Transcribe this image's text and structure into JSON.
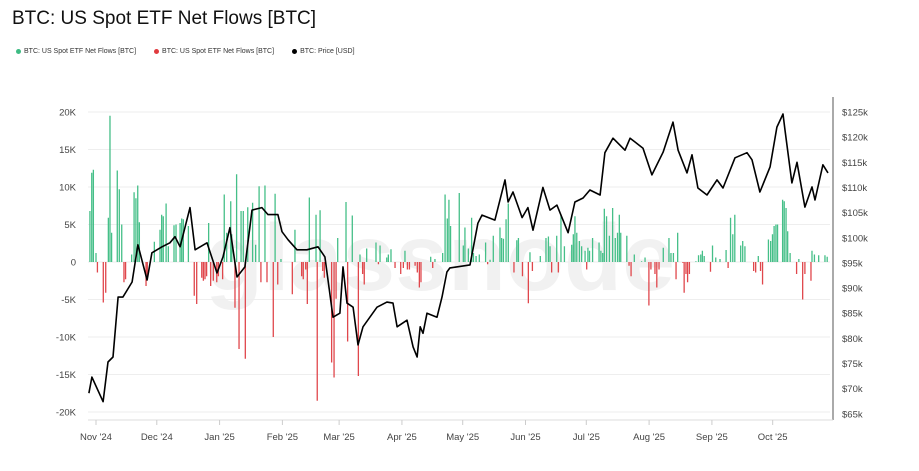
{
  "chart_data": {
    "type": "bar+line",
    "title": "BTC: US Spot ETF Net Flows [BTC]",
    "watermark": "glassnode",
    "x_unit": "days since 2024-11-01",
    "x_origin": "2024-11-01",
    "xlim": [
      -4,
      362
    ],
    "x_ticks": [
      {
        "day": 0,
        "label": "Nov '24"
      },
      {
        "day": 30,
        "label": "Dec '24"
      },
      {
        "day": 61,
        "label": "Jan '25"
      },
      {
        "day": 92,
        "label": "Feb '25"
      },
      {
        "day": 120,
        "label": "Mar '25"
      },
      {
        "day": 151,
        "label": "Apr '25"
      },
      {
        "day": 181,
        "label": "May '25"
      },
      {
        "day": 212,
        "label": "Jun '25"
      },
      {
        "day": 242,
        "label": "Jul '25"
      },
      {
        "day": 273,
        "label": "Aug '25"
      },
      {
        "day": 304,
        "label": "Sep '25"
      },
      {
        "day": 334,
        "label": "Oct '25"
      }
    ],
    "y_left": {
      "unit": "K BTC",
      "lim": [
        -20,
        20
      ],
      "ticks": [
        {
          "v": 20,
          "label": "20K"
        },
        {
          "v": 15,
          "label": "15K"
        },
        {
          "v": 10,
          "label": "10K"
        },
        {
          "v": 5,
          "label": "5K"
        },
        {
          "v": 0,
          "label": "0"
        },
        {
          "v": -5,
          "label": "-5K"
        },
        {
          "v": -10,
          "label": "-10K"
        },
        {
          "v": -15,
          "label": "-15K"
        },
        {
          "v": -20,
          "label": "-20K"
        }
      ]
    },
    "y_right": {
      "unit": "k USD",
      "lim": [
        65,
        125
      ],
      "ticks": [
        {
          "v": 125,
          "label": "$125k"
        },
        {
          "v": 120,
          "label": "$120k"
        },
        {
          "v": 115,
          "label": "$115k"
        },
        {
          "v": 110,
          "label": "$110k"
        },
        {
          "v": 105,
          "label": "$105k"
        },
        {
          "v": 100,
          "label": "$100k"
        },
        {
          "v": 95,
          "label": "$95k"
        },
        {
          "v": 90,
          "label": "$90k"
        },
        {
          "v": 85,
          "label": "$85k"
        },
        {
          "v": 80,
          "label": "$80k"
        },
        {
          "v": 75,
          "label": "$75k"
        },
        {
          "v": 70,
          "label": "$70k"
        },
        {
          "v": 65,
          "label": "$65k"
        }
      ]
    },
    "legend": [
      {
        "label": "BTC: US Spot ETF Net Flows [BTC]",
        "color": "#3dbb83"
      },
      {
        "label": "BTC: US Spot ETF Net Flows [BTC]",
        "color": "#e03a3e"
      },
      {
        "label": "BTC: Price [USD]",
        "color": "#000000"
      }
    ],
    "colors": {
      "inflow": "#45bf88",
      "outflow": "#e0474c",
      "price": "#000000",
      "grid": "#eeeeee"
    },
    "flows": [
      [
        -3.0,
        6.8
      ],
      [
        -2.1,
        11.9
      ],
      [
        -1.3,
        12.3
      ],
      [
        0,
        1.2
      ],
      [
        0.7,
        -1.4
      ],
      [
        3.6,
        -5.4
      ],
      [
        4.8,
        -4.1
      ],
      [
        6.1,
        5.9
      ],
      [
        6.9,
        19.5
      ],
      [
        7.7,
        3.9
      ],
      [
        10.5,
        12.2
      ],
      [
        11.5,
        9.7
      ],
      [
        12.7,
        5
      ],
      [
        13.8,
        -2.7
      ],
      [
        14.6,
        -2.3
      ],
      [
        17.6,
        1
      ],
      [
        18.8,
        9.3
      ],
      [
        19.7,
        8.5
      ],
      [
        20.6,
        10.2
      ],
      [
        21.4,
        5.3
      ],
      [
        24.7,
        -3.2
      ],
      [
        25.3,
        -2.3
      ],
      [
        28.8,
        2.7
      ],
      [
        31.6,
        4.3
      ],
      [
        32.4,
        6.3
      ],
      [
        33.2,
        6.1
      ],
      [
        34.6,
        7.8
      ],
      [
        35.7,
        2.1
      ],
      [
        38.5,
        4.9
      ],
      [
        39.5,
        5
      ],
      [
        41.5,
        5.2
      ],
      [
        42.3,
        5.8
      ],
      [
        43.1,
        5.7
      ],
      [
        45.6,
        4.8
      ],
      [
        48.5,
        -4.5
      ],
      [
        49.7,
        -5.6
      ],
      [
        52.2,
        -2.1
      ],
      [
        53.0,
        -2.5
      ],
      [
        53.8,
        -2.3
      ],
      [
        54.6,
        -1.9
      ],
      [
        55.6,
        5.2
      ],
      [
        56.6,
        -3.2
      ],
      [
        57.9,
        -2.5
      ],
      [
        59.6,
        -2.7
      ],
      [
        60.4,
        -1.9
      ],
      [
        62.5,
        -2.3
      ],
      [
        63.3,
        9
      ],
      [
        64.5,
        3.9
      ],
      [
        66.5,
        8.1
      ],
      [
        67.0,
        3.7
      ],
      [
        68.6,
        -6.1
      ],
      [
        69.4,
        11.7
      ],
      [
        70.6,
        -11.6
      ],
      [
        71.6,
        6.8
      ],
      [
        72.7,
        6.8
      ],
      [
        73.7,
        -12.9
      ],
      [
        74.9,
        7.3
      ],
      [
        77.3,
        7.9
      ],
      [
        78.8,
        2.3
      ],
      [
        80.5,
        10.1
      ],
      [
        81.4,
        -2.7
      ],
      [
        83.4,
        10.2
      ],
      [
        84.4,
        -2.7
      ],
      [
        87.5,
        -10
      ],
      [
        88.4,
        9.1
      ],
      [
        89.7,
        -3
      ],
      [
        91.3,
        0.4
      ],
      [
        96.9,
        -4.3
      ],
      [
        98.2,
        4.3
      ],
      [
        101.5,
        -1.9
      ],
      [
        102.3,
        -2.3
      ],
      [
        103.5,
        -1
      ],
      [
        104.3,
        -5.6
      ],
      [
        105.3,
        8.6
      ],
      [
        108.6,
        6.3
      ],
      [
        109.2,
        -18.5
      ],
      [
        110.6,
        6.9
      ],
      [
        111.9,
        -1.2
      ],
      [
        112.7,
        -2.1
      ],
      [
        116.3,
        -13.4
      ],
      [
        117.5,
        -15.4
      ],
      [
        118.5,
        -4.9
      ],
      [
        119.3,
        3.2
      ],
      [
        123.4,
        8
      ],
      [
        124.2,
        -10.6
      ],
      [
        126.5,
        6.2
      ],
      [
        129.5,
        -15.2
      ],
      [
        130.3,
        1
      ],
      [
        131.6,
        -1.6
      ],
      [
        132.4,
        -3
      ],
      [
        133.6,
        1.8
      ],
      [
        138.2,
        2.6
      ],
      [
        139.4,
        -0.3
      ],
      [
        140.2,
        2.2
      ],
      [
        143.5,
        0.6
      ],
      [
        144.3,
        1
      ],
      [
        145.6,
        1.7
      ],
      [
        147.6,
        -0.8
      ],
      [
        150.4,
        -1.6
      ],
      [
        151.7,
        -0.8
      ],
      [
        152.5,
        1.5
      ],
      [
        153.7,
        -1
      ],
      [
        154.7,
        -1
      ],
      [
        157.5,
        -0.5
      ],
      [
        158.6,
        -1.4
      ],
      [
        159.6,
        -3.4
      ],
      [
        160.4,
        -2.7
      ],
      [
        165.2,
        0.7
      ],
      [
        166.2,
        -0.8
      ],
      [
        167.3,
        0.4
      ],
      [
        171.1,
        1.2
      ],
      [
        172.3,
        9
      ],
      [
        173.4,
        5.8
      ],
      [
        174.2,
        8.3
      ],
      [
        175.0,
        4.8
      ],
      [
        179.3,
        9.2
      ],
      [
        181.3,
        2.2
      ],
      [
        182.1,
        4.6
      ],
      [
        183.8,
        1.8
      ],
      [
        185.4,
        5.9
      ],
      [
        186.3,
        1.2
      ],
      [
        187.6,
        0.8
      ],
      [
        189.2,
        1
      ],
      [
        192.3,
        2.6
      ],
      [
        193.3,
        -0.3
      ],
      [
        194.5,
        0.3
      ],
      [
        196.1,
        3.5
      ],
      [
        199.4,
        4.6
      ],
      [
        200.2,
        3.2
      ],
      [
        201.1,
        3.1
      ],
      [
        202.4,
        5.7
      ],
      [
        203.5,
        7.8
      ],
      [
        206.3,
        -1.4
      ],
      [
        207.7,
        2.9
      ],
      [
        208.5,
        3.2
      ],
      [
        210.5,
        -1.9
      ],
      [
        213.4,
        -5.5
      ],
      [
        214.2,
        1.3
      ],
      [
        215.4,
        -1.2
      ],
      [
        219.3,
        0.8
      ],
      [
        222.1,
        3.2
      ],
      [
        223.3,
        3.4
      ],
      [
        224.1,
        2.1
      ],
      [
        224.9,
        -1.4
      ],
      [
        227.4,
        3.5
      ],
      [
        228.2,
        -1.4
      ],
      [
        229.5,
        6.3
      ],
      [
        231.2,
        2.1
      ],
      [
        234.8,
        2.3
      ],
      [
        235.6,
        3.7
      ],
      [
        236.4,
        6.1
      ],
      [
        237.3,
        3.9
      ],
      [
        238.6,
        2.8
      ],
      [
        239.7,
        2.1
      ],
      [
        241.4,
        1.5
      ],
      [
        242.2,
        -1
      ],
      [
        242.8,
        1.9
      ],
      [
        243.6,
        1.5
      ],
      [
        245.1,
        3.2
      ],
      [
        248.3,
        2.6
      ],
      [
        249.2,
        1.5
      ],
      [
        250.1,
        1.2
      ],
      [
        250.9,
        7.1
      ],
      [
        252.0,
        6.1
      ],
      [
        253.4,
        3.5
      ],
      [
        255.0,
        7.2
      ],
      [
        256.3,
        3.2
      ],
      [
        257.4,
        3.9
      ],
      [
        258.3,
        6.3
      ],
      [
        259.0,
        3.9
      ],
      [
        262.0,
        3.5
      ],
      [
        263.1,
        -0.5
      ],
      [
        264.1,
        -1.9
      ],
      [
        265.7,
        1
      ],
      [
        269.3,
        0.1
      ],
      [
        271.0,
        0.6
      ],
      [
        272.9,
        -5.8
      ],
      [
        273.9,
        -1
      ],
      [
        275.9,
        -1.6
      ],
      [
        276.8,
        -3.4
      ],
      [
        277.9,
        -1
      ],
      [
        280.0,
        1.9
      ],
      [
        282.8,
        3.2
      ],
      [
        283.8,
        1.2
      ],
      [
        285.0,
        1.2
      ],
      [
        286.3,
        -2.3
      ],
      [
        287.1,
        3.9
      ],
      [
        289.6,
        -0.1
      ],
      [
        290.3,
        -4.1
      ],
      [
        291.2,
        -1.6
      ],
      [
        292.0,
        -2.7
      ],
      [
        292.9,
        -1.6
      ],
      [
        296.1,
        0.1
      ],
      [
        297.4,
        0.9
      ],
      [
        298.5,
        1
      ],
      [
        299.3,
        1.5
      ],
      [
        300.2,
        0.8
      ],
      [
        303.3,
        -1.3
      ],
      [
        304.3,
        2.2
      ],
      [
        305.9,
        0.6
      ],
      [
        308.0,
        0.4
      ],
      [
        311.0,
        1.6
      ],
      [
        312.0,
        -0.8
      ],
      [
        313.2,
        5.9
      ],
      [
        314.3,
        3.7
      ],
      [
        315.3,
        6.3
      ],
      [
        318.2,
        2.2
      ],
      [
        319.2,
        2.8
      ],
      [
        320.3,
        2.1
      ],
      [
        324.6,
        -1.2
      ],
      [
        325.6,
        -1.4
      ],
      [
        326.9,
        0.8
      ],
      [
        328.0,
        -1.2
      ],
      [
        329.0,
        -3
      ],
      [
        331.9,
        3
      ],
      [
        333.0,
        2.8
      ],
      [
        333.9,
        3.7
      ],
      [
        334.7,
        4.8
      ],
      [
        335.6,
        5
      ],
      [
        336.4,
        5
      ],
      [
        338.9,
        8.3
      ],
      [
        339.7,
        8.1
      ],
      [
        340.6,
        7.2
      ],
      [
        341.4,
        4.1
      ],
      [
        342.6,
        1.2
      ],
      [
        345.8,
        -1.6
      ],
      [
        346.9,
        0.4
      ],
      [
        348.8,
        -5
      ],
      [
        349.9,
        -1.6
      ],
      [
        352.9,
        -2.5
      ],
      [
        353.4,
        1.5
      ],
      [
        354.6,
        1
      ],
      [
        356.7,
        0.9
      ],
      [
        359.8,
        0.9
      ],
      [
        360.9,
        0.7
      ]
    ],
    "price": [
      [
        -3.5,
        69.1
      ],
      [
        -2,
        72.3
      ],
      [
        3.5,
        67.4
      ],
      [
        5.9,
        75.3
      ],
      [
        8.4,
        76.3
      ],
      [
        10.9,
        88.2
      ],
      [
        13.3,
        88.2
      ],
      [
        17.8,
        91.2
      ],
      [
        20.7,
        98.6
      ],
      [
        25.2,
        91.6
      ],
      [
        27.6,
        97
      ],
      [
        32.6,
        98.2
      ],
      [
        36.5,
        99
      ],
      [
        39,
        100.2
      ],
      [
        41.5,
        98.2
      ],
      [
        46.4,
        106
      ],
      [
        48.9,
        97.6
      ],
      [
        54.8,
        99
      ],
      [
        59.7,
        93
      ],
      [
        62.7,
        96.2
      ],
      [
        66.1,
        102
      ],
      [
        69.6,
        92.2
      ],
      [
        73.5,
        94.2
      ],
      [
        77,
        105.5
      ],
      [
        81.9,
        106
      ],
      [
        84.9,
        104.6
      ],
      [
        89.8,
        104.6
      ],
      [
        91.8,
        101.2
      ],
      [
        94.8,
        99.6
      ],
      [
        99.2,
        97.6
      ],
      [
        104.1,
        97.6
      ],
      [
        109.6,
        98.2
      ],
      [
        113,
        96.2
      ],
      [
        117,
        84.2
      ],
      [
        120.4,
        85
      ],
      [
        121.9,
        94.2
      ],
      [
        123.9,
        87
      ],
      [
        126.9,
        86.2
      ],
      [
        129.3,
        78.7
      ],
      [
        131.8,
        82.3
      ],
      [
        138.7,
        86.2
      ],
      [
        143.6,
        87.2
      ],
      [
        146.6,
        87
      ],
      [
        148.6,
        82.3
      ],
      [
        153.5,
        83.6
      ],
      [
        156.5,
        78.3
      ],
      [
        158.5,
        76.3
      ],
      [
        160,
        82.3
      ],
      [
        161.4,
        81
      ],
      [
        163.4,
        85
      ],
      [
        168.3,
        84.2
      ],
      [
        170.8,
        88.2
      ],
      [
        173.2,
        93.2
      ],
      [
        174.7,
        94
      ],
      [
        184.6,
        94.6
      ],
      [
        188.5,
        102.9
      ],
      [
        190.5,
        104.5
      ],
      [
        196.9,
        103.5
      ],
      [
        201.9,
        111.5
      ],
      [
        203.4,
        107.1
      ],
      [
        205.8,
        109.1
      ],
      [
        210.3,
        104
      ],
      [
        213.2,
        106
      ],
      [
        215.7,
        101.5
      ],
      [
        220.6,
        110
      ],
      [
        224.1,
        105.5
      ],
      [
        227.5,
        106.5
      ],
      [
        233,
        101
      ],
      [
        236.4,
        107.1
      ],
      [
        240.4,
        107.9
      ],
      [
        243.8,
        109.5
      ],
      [
        248.8,
        108.5
      ],
      [
        251.2,
        116.9
      ],
      [
        255.2,
        119.8
      ],
      [
        261.1,
        117.4
      ],
      [
        263.6,
        119.8
      ],
      [
        270,
        117.8
      ],
      [
        274.4,
        112.5
      ],
      [
        279.9,
        117
      ],
      [
        284.8,
        123
      ],
      [
        287.3,
        117.4
      ],
      [
        291.7,
        112.9
      ],
      [
        294.2,
        116.5
      ],
      [
        297.1,
        109.9
      ],
      [
        301.6,
        108.5
      ],
      [
        306.5,
        111.5
      ],
      [
        309.5,
        109.9
      ],
      [
        315.4,
        115.9
      ],
      [
        321.3,
        116.9
      ],
      [
        323.8,
        115.5
      ],
      [
        327.7,
        109.1
      ],
      [
        332.7,
        114.1
      ],
      [
        336.1,
        122
      ],
      [
        339.1,
        124.6
      ],
      [
        340.1,
        121.4
      ],
      [
        343.5,
        110.9
      ],
      [
        346,
        115
      ],
      [
        349.9,
        106.1
      ],
      [
        353.4,
        110.1
      ],
      [
        354.9,
        107.5
      ],
      [
        358.8,
        114.5
      ],
      [
        361.3,
        112.9
      ]
    ]
  }
}
